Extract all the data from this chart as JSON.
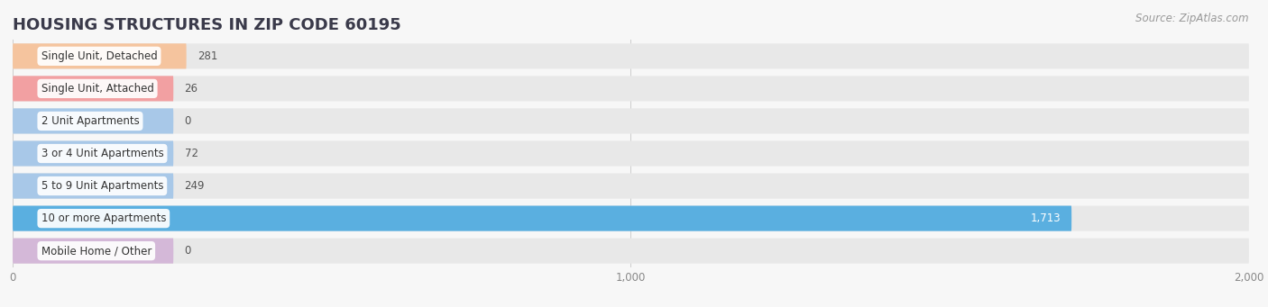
{
  "title": "HOUSING STRUCTURES IN ZIP CODE 60195",
  "source": "Source: ZipAtlas.com",
  "categories": [
    "Single Unit, Detached",
    "Single Unit, Attached",
    "2 Unit Apartments",
    "3 or 4 Unit Apartments",
    "5 to 9 Unit Apartments",
    "10 or more Apartments",
    "Mobile Home / Other"
  ],
  "values": [
    281,
    26,
    0,
    72,
    249,
    1713,
    0
  ],
  "bar_colors": [
    "#f5c49e",
    "#f2a0a2",
    "#a8c8e8",
    "#a8c8e8",
    "#a8c8e8",
    "#5aafe0",
    "#d4b8d8"
  ],
  "background_color": "#f7f7f7",
  "bar_bg_color": "#e8e8e8",
  "row_gap_color": "#f7f7f7",
  "xlim": [
    0,
    2000
  ],
  "xticks": [
    0,
    1000,
    2000
  ],
  "xtick_labels": [
    "0",
    "1,000",
    "2,000"
  ],
  "title_fontsize": 13,
  "label_fontsize": 8.5,
  "value_fontsize": 8.5,
  "source_fontsize": 8.5
}
